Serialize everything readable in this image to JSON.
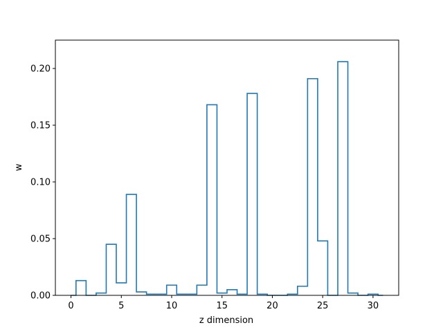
{
  "chart_data": {
    "type": "bar",
    "style": "step-histogram",
    "title": "",
    "xlabel": "z dimension",
    "ylabel": "w",
    "xlim": [
      -1.55,
      32.55
    ],
    "ylim": [
      0,
      0.225
    ],
    "grid": false,
    "color": "#1f77b4",
    "xticks": [
      0,
      5,
      10,
      15,
      20,
      25,
      30
    ],
    "xtick_labels": [
      "0",
      "5",
      "10",
      "15",
      "20",
      "25",
      "30"
    ],
    "yticks": [
      0.0,
      0.05,
      0.1,
      0.15,
      0.2
    ],
    "ytick_labels": [
      "0.00",
      "0.05",
      "0.10",
      "0.15",
      "0.20"
    ],
    "bin_edges": [
      0,
      0.5,
      1.5,
      2.5,
      3.5,
      4.5,
      5.5,
      6.5,
      7.5,
      8.5,
      9.5,
      10.5,
      11.5,
      12.5,
      13.5,
      14.5,
      15.5,
      16.5,
      17.5,
      18.5,
      19.5,
      20.5,
      21.5,
      22.5,
      23.5,
      24.5,
      25.5,
      26.5,
      27.5,
      28.5,
      29.5,
      30.5,
      31
    ],
    "values": [
      0.0,
      0.013,
      0.0,
      0.002,
      0.045,
      0.011,
      0.089,
      0.003,
      0.001,
      0.001,
      0.009,
      0.001,
      0.001,
      0.009,
      0.168,
      0.002,
      0.005,
      0.001,
      0.178,
      0.001,
      0.0,
      0.0,
      0.001,
      0.008,
      0.191,
      0.048,
      0.0,
      0.206,
      0.002,
      0.0,
      0.001,
      0.0
    ]
  }
}
